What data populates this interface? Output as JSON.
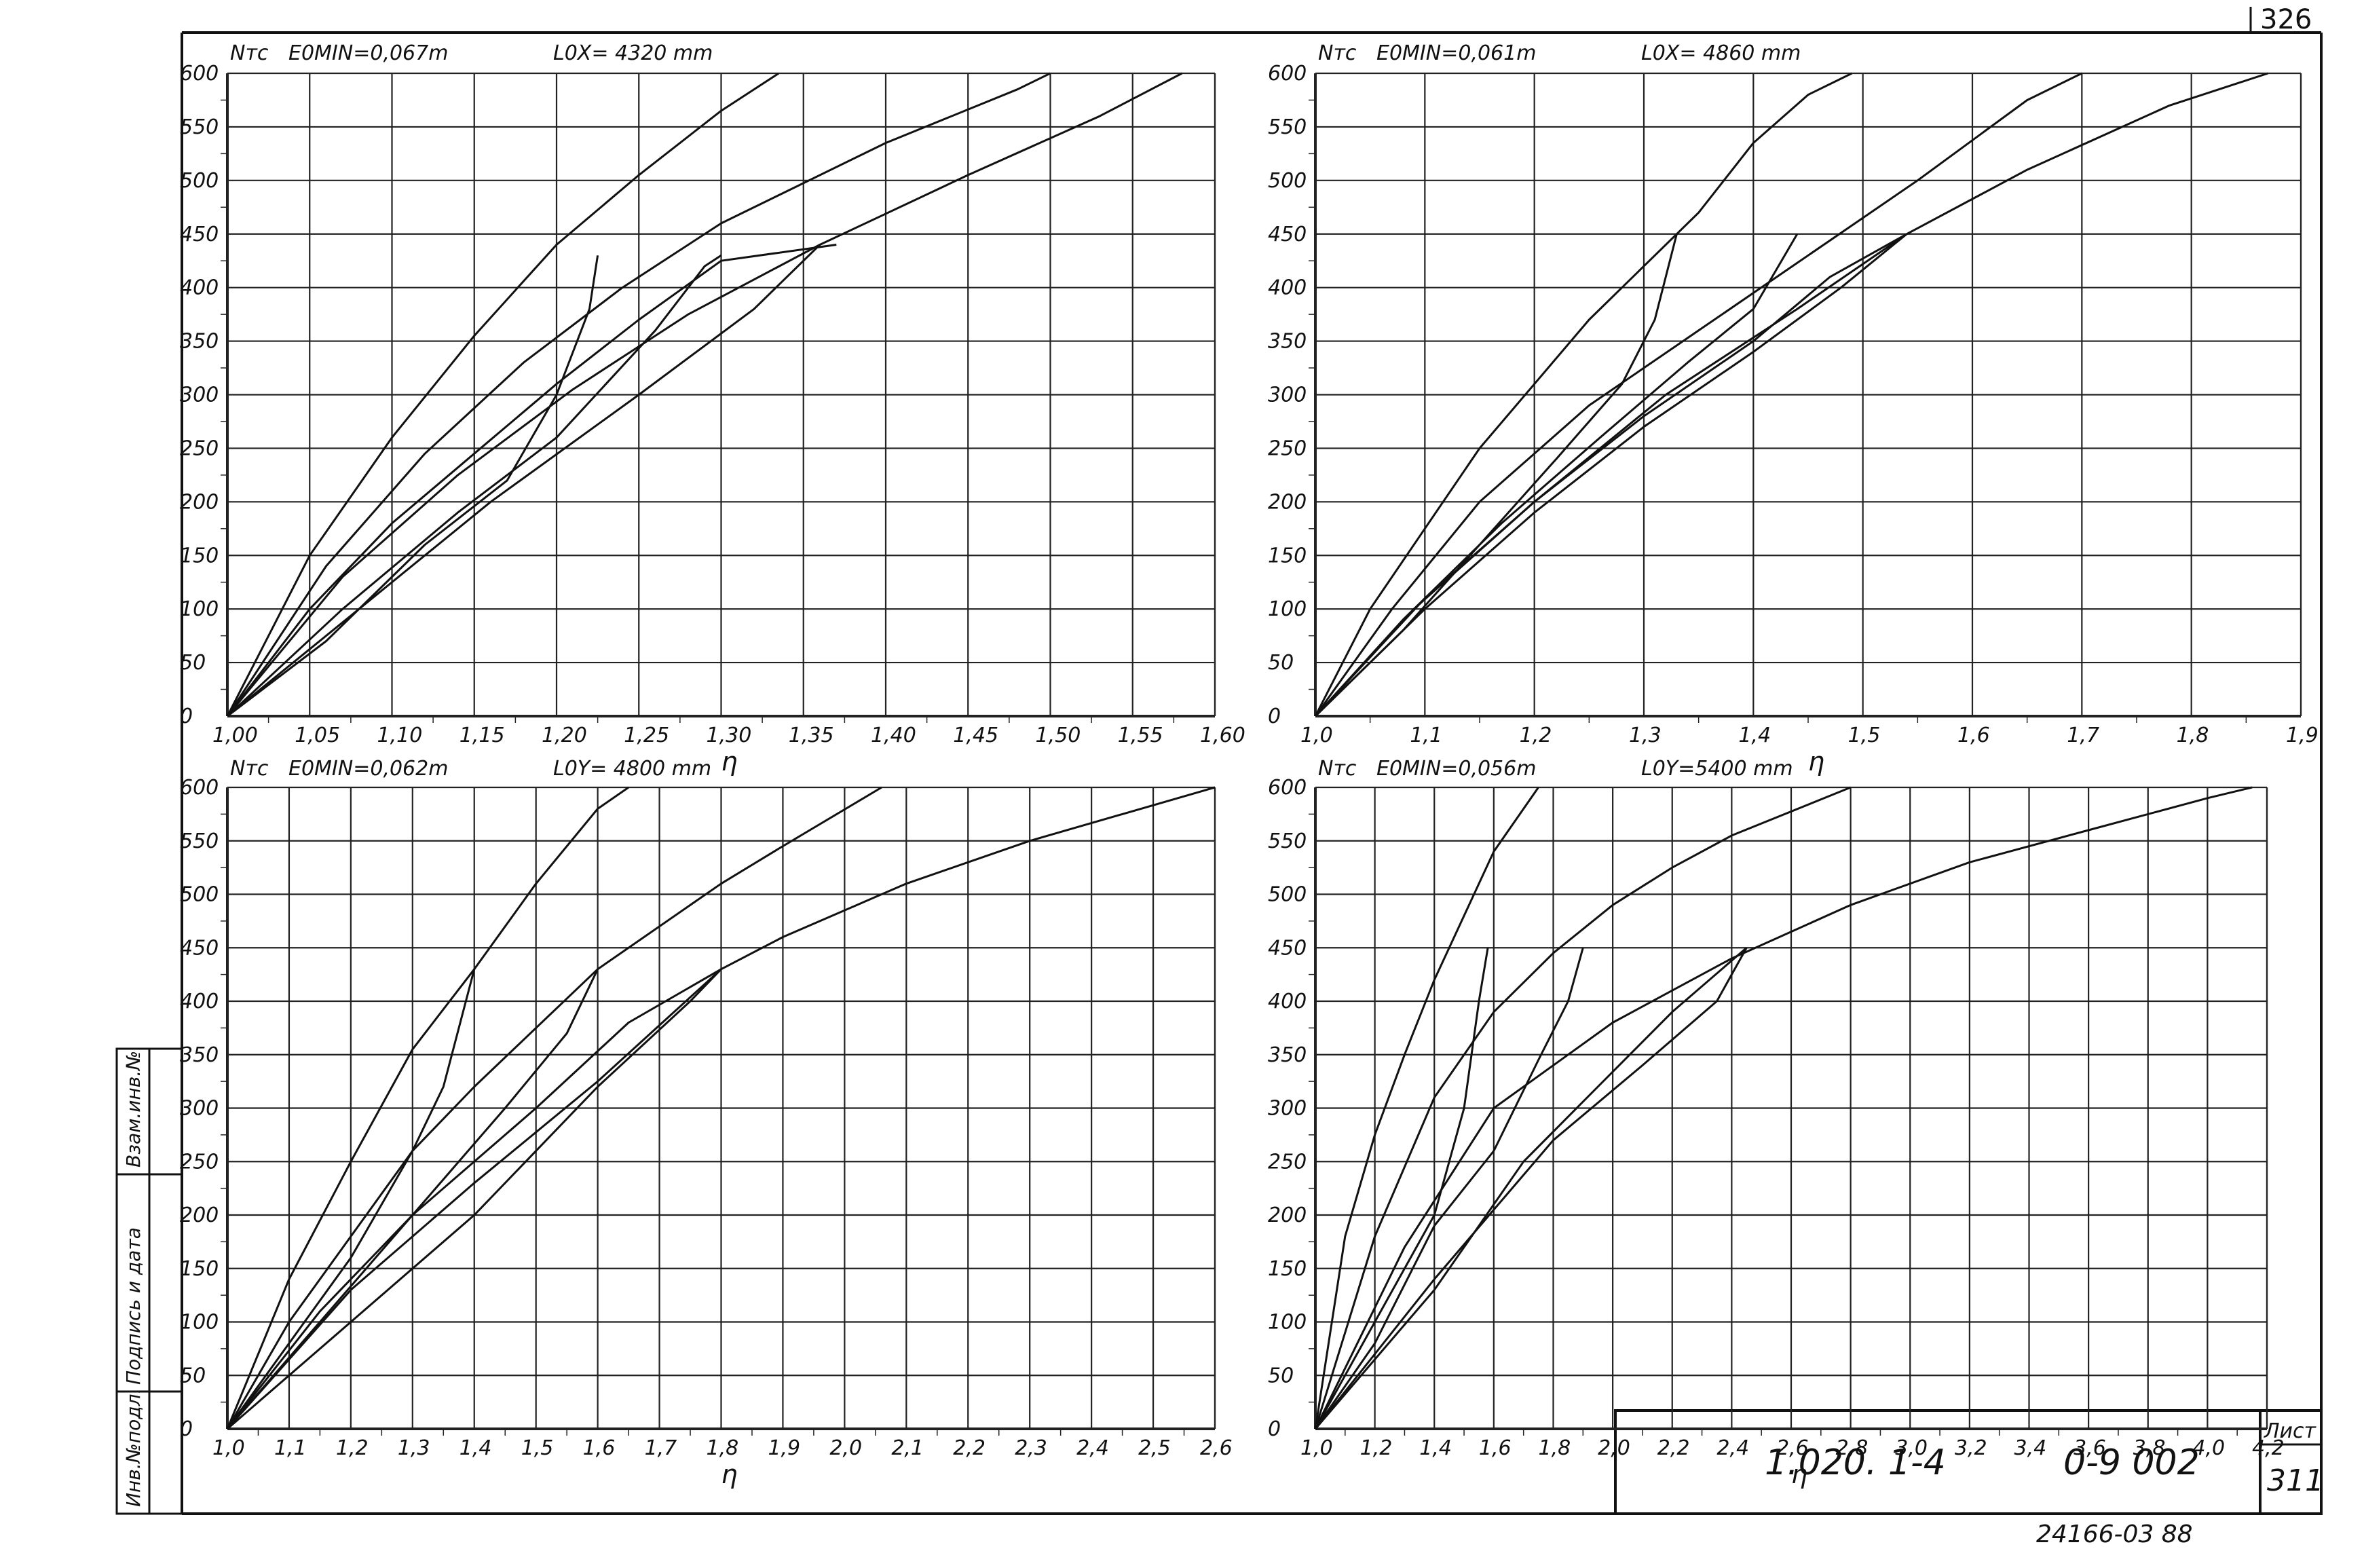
{
  "sheet": {
    "page_number": "326",
    "document_code": "1.020. 1-4",
    "drawing_number": "0-9 002",
    "sheet_label": "Лист",
    "sheet_number": "311",
    "footer_stamp": "24166-03 88",
    "side_labels": [
      "Инв.№подл.",
      "Подпись и дата",
      "Взам.инв.№"
    ],
    "colors": {
      "ink": "#111111",
      "grid": "#222222",
      "paper": "#ffffff"
    }
  },
  "chart_data": [
    {
      "type": "line",
      "position": "top-left",
      "y_unit": "Nтс",
      "param": "E0MIN=0,067m",
      "length": "L0X= 4320 mm",
      "xlabel": "η",
      "ylabel": "Nтс",
      "xlim": [
        1.0,
        1.6
      ],
      "ylim": [
        0,
        600
      ],
      "x_ticks": [
        "1,00",
        "1,05",
        "1,10",
        "1,15",
        "1,20",
        "1,25",
        "1,30",
        "1,35",
        "1,40",
        "1,45",
        "1,50",
        "1,55",
        "1,60"
      ],
      "y_ticks": [
        "0",
        "50",
        "100",
        "150",
        "200",
        "250",
        "300",
        "350",
        "400",
        "450",
        "500",
        "550",
        "600"
      ],
      "grid": true,
      "series": [
        {
          "values": [
            [
              1.0,
              0
            ],
            [
              1.05,
              150
            ],
            [
              1.1,
              260
            ],
            [
              1.15,
              355
            ],
            [
              1.2,
              440
            ],
            [
              1.25,
              505
            ],
            [
              1.3,
              565
            ],
            [
              1.335,
              600
            ]
          ]
        },
        {
          "values": [
            [
              1.0,
              0
            ],
            [
              1.06,
              140
            ],
            [
              1.12,
              245
            ],
            [
              1.18,
              330
            ],
            [
              1.24,
              400
            ],
            [
              1.3,
              460
            ],
            [
              1.4,
              535
            ],
            [
              1.48,
              585
            ],
            [
              1.5,
              600
            ]
          ]
        },
        {
          "values": [
            [
              1.0,
              0
            ],
            [
              1.07,
              130
            ],
            [
              1.14,
              225
            ],
            [
              1.21,
              305
            ],
            [
              1.28,
              375
            ],
            [
              1.36,
              440
            ],
            [
              1.45,
              505
            ],
            [
              1.53,
              560
            ],
            [
              1.58,
              600
            ]
          ]
        },
        {
          "values": [
            [
              1.0,
              0
            ],
            [
              1.05,
              100
            ],
            [
              1.1,
              180
            ],
            [
              1.15,
              245
            ],
            [
              1.2,
              310
            ],
            [
              1.25,
              370
            ],
            [
              1.3,
              425
            ],
            [
              1.37,
              440
            ]
          ]
        },
        {
          "values": [
            [
              1.0,
              0
            ],
            [
              1.06,
              70
            ],
            [
              1.12,
              160
            ],
            [
              1.17,
              220
            ],
            [
              1.2,
              300
            ],
            [
              1.22,
              380
            ],
            [
              1.225,
              430
            ]
          ]
        },
        {
          "values": [
            [
              1.0,
              0
            ],
            [
              1.07,
              100
            ],
            [
              1.14,
              190
            ],
            [
              1.2,
              260
            ],
            [
              1.26,
              360
            ],
            [
              1.29,
              420
            ],
            [
              1.3,
              430
            ]
          ]
        },
        {
          "values": [
            [
              1.0,
              0
            ],
            [
              1.08,
              100
            ],
            [
              1.16,
              200
            ],
            [
              1.25,
              300
            ],
            [
              1.32,
              380
            ],
            [
              1.36,
              440
            ]
          ]
        }
      ]
    },
    {
      "type": "line",
      "position": "top-right",
      "y_unit": "Nтс",
      "param": "E0MIN=0,061m",
      "length": "L0X= 4860 mm",
      "xlabel": "η",
      "ylabel": "Nтс",
      "xlim": [
        1.0,
        1.9
      ],
      "ylim": [
        0,
        600
      ],
      "x_ticks": [
        "1,0",
        "1,1",
        "1,2",
        "1,3",
        "1,4",
        "1,5",
        "1,6",
        "1,7",
        "1,8",
        "1,9"
      ],
      "y_ticks": [
        "0",
        "50",
        "100",
        "150",
        "200",
        "250",
        "300",
        "350",
        "400",
        "450",
        "500",
        "550",
        "600"
      ],
      "grid": true,
      "series": [
        {
          "values": [
            [
              1.0,
              0
            ],
            [
              1.05,
              100
            ],
            [
              1.1,
              175
            ],
            [
              1.15,
              250
            ],
            [
              1.2,
              310
            ],
            [
              1.25,
              370
            ],
            [
              1.3,
              420
            ],
            [
              1.35,
              470
            ],
            [
              1.4,
              535
            ],
            [
              1.45,
              580
            ],
            [
              1.49,
              600
            ]
          ]
        },
        {
          "values": [
            [
              1.0,
              0
            ],
            [
              1.07,
              100
            ],
            [
              1.15,
              200
            ],
            [
              1.25,
              290
            ],
            [
              1.35,
              360
            ],
            [
              1.45,
              430
            ],
            [
              1.55,
              500
            ],
            [
              1.65,
              575
            ],
            [
              1.7,
              600
            ]
          ]
        },
        {
          "values": [
            [
              1.0,
              0
            ],
            [
              1.09,
              100
            ],
            [
              1.2,
              200
            ],
            [
              1.32,
              300
            ],
            [
              1.44,
              380
            ],
            [
              1.54,
              450
            ],
            [
              1.65,
              510
            ],
            [
              1.78,
              570
            ],
            [
              1.87,
              600
            ]
          ]
        },
        {
          "values": [
            [
              1.0,
              0
            ],
            [
              1.1,
              110
            ],
            [
              1.2,
              200
            ],
            [
              1.3,
              280
            ],
            [
              1.4,
              350
            ],
            [
              1.47,
              410
            ],
            [
              1.54,
              450
            ]
          ]
        },
        {
          "values": [
            [
              1.0,
              0
            ],
            [
              1.08,
              80
            ],
            [
              1.15,
              160
            ],
            [
              1.22,
              240
            ],
            [
              1.28,
              310
            ],
            [
              1.31,
              370
            ],
            [
              1.33,
              450
            ]
          ]
        },
        {
          "values": [
            [
              1.0,
              0
            ],
            [
              1.08,
              90
            ],
            [
              1.17,
              180
            ],
            [
              1.26,
              260
            ],
            [
              1.34,
              330
            ],
            [
              1.4,
              380
            ],
            [
              1.44,
              450
            ]
          ]
        },
        {
          "values": [
            [
              1.0,
              0
            ],
            [
              1.1,
              100
            ],
            [
              1.2,
              190
            ],
            [
              1.3,
              270
            ],
            [
              1.4,
              340
            ],
            [
              1.48,
              400
            ],
            [
              1.54,
              450
            ]
          ]
        }
      ]
    },
    {
      "type": "line",
      "position": "bottom-left",
      "y_unit": "Nтс",
      "param": "E0MIN=0,062m",
      "length": "L0Y= 4800 mm",
      "xlabel": "η",
      "ylabel": "Nтс",
      "xlim": [
        1.0,
        2.6
      ],
      "ylim": [
        0,
        600
      ],
      "x_ticks": [
        "1,0",
        "1,1",
        "1,2",
        "1,3",
        "1,4",
        "1,5",
        "1,6",
        "1,7",
        "1,8",
        "1,9",
        "2,0",
        "2,1",
        "2,2",
        "2,3",
        "2,4",
        "2,5",
        "2,6"
      ],
      "y_ticks": [
        "0",
        "50",
        "100",
        "150",
        "200",
        "250",
        "300",
        "350",
        "400",
        "450",
        "500",
        "550",
        "600"
      ],
      "grid": true,
      "series": [
        {
          "values": [
            [
              1.0,
              0
            ],
            [
              1.1,
              140
            ],
            [
              1.2,
              250
            ],
            [
              1.3,
              355
            ],
            [
              1.4,
              430
            ],
            [
              1.5,
              510
            ],
            [
              1.6,
              580
            ],
            [
              1.65,
              600
            ]
          ]
        },
        {
          "values": [
            [
              1.0,
              0
            ],
            [
              1.1,
              100
            ],
            [
              1.2,
              180
            ],
            [
              1.3,
              260
            ],
            [
              1.4,
              320
            ],
            [
              1.6,
              430
            ],
            [
              1.8,
              510
            ],
            [
              1.9,
              545
            ],
            [
              2.06,
              600
            ]
          ]
        },
        {
          "values": [
            [
              1.0,
              0
            ],
            [
              1.15,
              100
            ],
            [
              1.3,
              200
            ],
            [
              1.5,
              300
            ],
            [
              1.65,
              380
            ],
            [
              1.8,
              430
            ],
            [
              1.9,
              460
            ],
            [
              2.1,
              510
            ],
            [
              2.3,
              550
            ],
            [
              2.6,
              600
            ]
          ]
        },
        {
          "values": [
            [
              1.0,
              0
            ],
            [
              1.2,
              130
            ],
            [
              1.4,
              230
            ],
            [
              1.6,
              325
            ],
            [
              1.8,
              430
            ]
          ]
        },
        {
          "values": [
            [
              1.0,
              0
            ],
            [
              1.1,
              80
            ],
            [
              1.2,
              160
            ],
            [
              1.3,
              260
            ],
            [
              1.35,
              320
            ],
            [
              1.4,
              430
            ]
          ]
        },
        {
          "values": [
            [
              1.0,
              0
            ],
            [
              1.15,
              110
            ],
            [
              1.3,
              200
            ],
            [
              1.45,
              300
            ],
            [
              1.55,
              370
            ],
            [
              1.6,
              430
            ]
          ]
        },
        {
          "values": [
            [
              1.0,
              0
            ],
            [
              1.2,
              100
            ],
            [
              1.4,
              200
            ],
            [
              1.6,
              320
            ],
            [
              1.75,
              400
            ],
            [
              1.8,
              430
            ]
          ]
        }
      ]
    },
    {
      "type": "line",
      "position": "bottom-right",
      "y_unit": "Nтс",
      "param": "E0MIN=0,056m",
      "length": "L0Y=5400 mm",
      "xlabel": "η",
      "ylabel": "Nтс",
      "xlim": [
        1.0,
        4.2
      ],
      "ylim": [
        0,
        600
      ],
      "x_ticks": [
        "1,0",
        "1,2",
        "1,4",
        "1,6",
        "1,8",
        "2,0",
        "2,2",
        "2,4",
        "2,6",
        "2,8",
        "3,0",
        "3,2",
        "3,4",
        "3,6",
        "3,8",
        "4,0",
        "4,2"
      ],
      "y_ticks": [
        "0",
        "50",
        "100",
        "150",
        "200",
        "250",
        "300",
        "350",
        "400",
        "450",
        "500",
        "550",
        "600"
      ],
      "grid": true,
      "series": [
        {
          "values": [
            [
              1.0,
              0
            ],
            [
              1.1,
              180
            ],
            [
              1.2,
              275
            ],
            [
              1.3,
              350
            ],
            [
              1.4,
              420
            ],
            [
              1.5,
              480
            ],
            [
              1.6,
              540
            ],
            [
              1.75,
              600
            ]
          ]
        },
        {
          "values": [
            [
              1.0,
              0
            ],
            [
              1.2,
              180
            ],
            [
              1.4,
              310
            ],
            [
              1.6,
              390
            ],
            [
              1.8,
              445
            ],
            [
              2.0,
              490
            ],
            [
              2.2,
              525
            ],
            [
              2.4,
              555
            ],
            [
              2.8,
              600
            ]
          ]
        },
        {
          "values": [
            [
              1.0,
              0
            ],
            [
              1.3,
              170
            ],
            [
              1.6,
              300
            ],
            [
              2.0,
              380
            ],
            [
              2.4,
              440
            ],
            [
              2.8,
              490
            ],
            [
              3.2,
              530
            ],
            [
              3.6,
              560
            ],
            [
              4.0,
              590
            ],
            [
              4.15,
              600
            ]
          ]
        },
        {
          "values": [
            [
              1.0,
              0
            ],
            [
              1.4,
              140
            ],
            [
              1.8,
              270
            ],
            [
              2.1,
              340
            ],
            [
              2.35,
              400
            ],
            [
              2.45,
              450
            ]
          ]
        },
        {
          "values": [
            [
              1.0,
              0
            ],
            [
              1.2,
              100
            ],
            [
              1.4,
              200
            ],
            [
              1.5,
              300
            ],
            [
              1.55,
              400
            ],
            [
              1.58,
              450
            ]
          ]
        },
        {
          "values": [
            [
              1.0,
              0
            ],
            [
              1.2,
              80
            ],
            [
              1.4,
              190
            ],
            [
              1.6,
              260
            ],
            [
              1.75,
              345
            ],
            [
              1.85,
              400
            ],
            [
              1.9,
              450
            ]
          ]
        },
        {
          "values": [
            [
              1.0,
              0
            ],
            [
              1.4,
              130
            ],
            [
              1.7,
              250
            ],
            [
              1.95,
              320
            ],
            [
              2.2,
              390
            ],
            [
              2.45,
              450
            ]
          ]
        }
      ]
    }
  ]
}
